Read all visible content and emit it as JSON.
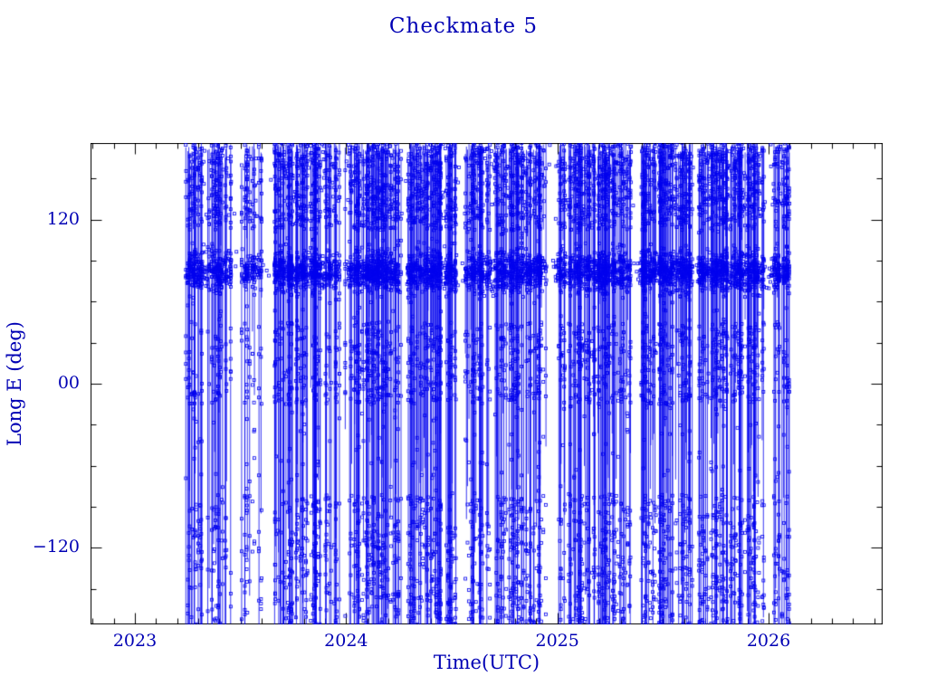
{
  "chart_data": {
    "type": "scatter",
    "title": "Checkmate 5",
    "xlabel": "Time(UTC)",
    "ylabel": "Long E (deg)",
    "xlim": [
      2022.79,
      2026.54
    ],
    "ylim": [
      -176,
      176
    ],
    "xticks": [
      {
        "value": 2023,
        "label": "2023"
      },
      {
        "value": 2024,
        "label": "2024"
      },
      {
        "value": 2025,
        "label": "2025"
      },
      {
        "value": 2026,
        "label": "2026"
      }
    ],
    "yticks": [
      {
        "value": 120,
        "label": "120"
      },
      {
        "value": 0,
        "label": "00"
      },
      {
        "value": -120,
        "label": "−120"
      }
    ],
    "x_minor_step": 0.1,
    "y_minor_step": 30,
    "grid": false,
    "legend": null,
    "marker": "open-square",
    "marker_size_px": 3,
    "colors": {
      "data": "#0000ee",
      "text": "#0000b4",
      "frame": "#000000"
    },
    "data_extent": {
      "x_start": 2023.24,
      "x_end": 2026.1
    },
    "n_traces": 780,
    "dense_band": {
      "center_deg": 82,
      "sigma_deg": 7
    },
    "gaps": [
      [
        2023.46,
        2023.52
      ],
      [
        2023.6,
        2023.66
      ],
      [
        2023.97,
        2024.01
      ],
      [
        2024.25,
        2024.29
      ],
      [
        2024.52,
        2024.56
      ],
      [
        2024.95,
        2024.99
      ],
      [
        2025.35,
        2025.39
      ],
      [
        2025.63,
        2025.67
      ],
      [
        2025.98,
        2026.01
      ]
    ],
    "sparse_region": {
      "x_start": 2023.24,
      "x_end": 2023.72
    },
    "pattern": "Dense vertical blue traces of sub-satellite longitude vs time, wrapping across the full ±180 deg range; markers are small open blue squares; a persistent dense cluster band near +80 deg longitude spans the whole time range; heavy saturation between +120 and +176 deg; scattered clusters near 0 deg and between −80 and −176 deg; data spans ~2023.24 to ~2026.1 with several narrow white time gaps."
  }
}
